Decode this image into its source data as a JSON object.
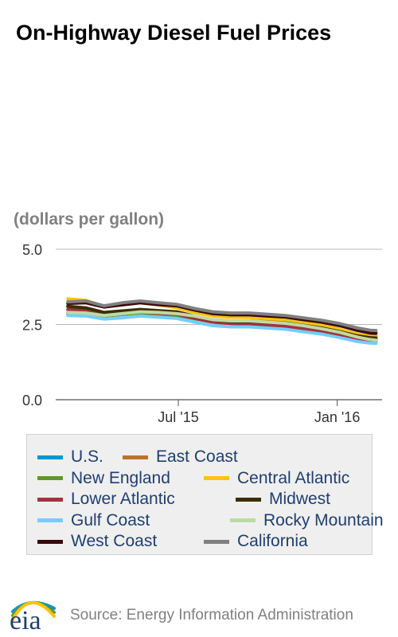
{
  "header": {
    "title": "On-Highway Diesel Fuel Prices",
    "units": "(dollars per gallon)"
  },
  "chart_data": {
    "type": "line",
    "ylim": [
      0,
      5
    ],
    "yticks": [
      "0.0",
      "2.5",
      "5.0"
    ],
    "ytick_values": [
      0,
      2.5,
      5
    ],
    "xticks": [
      {
        "label": "Jul '15",
        "date": "2015-07-01"
      },
      {
        "label": "Jan '16",
        "date": "2016-01-01"
      }
    ],
    "x_start": "2015-02-09",
    "x_end": "2016-02-22",
    "grid": "horizontal",
    "dates": [
      "2015-02-23",
      "2015-03-16",
      "2015-04-06",
      "2015-04-27",
      "2015-05-18",
      "2015-06-08",
      "2015-06-29",
      "2015-07-20",
      "2015-08-10",
      "2015-08-31",
      "2015-09-21",
      "2015-10-12",
      "2015-11-02",
      "2015-11-23",
      "2015-12-14",
      "2016-01-04",
      "2016-01-25",
      "2016-02-08",
      "2016-02-15"
    ],
    "series": [
      {
        "name": "U.S.",
        "color": "#0096d7",
        "values": [
          2.9,
          2.93,
          2.8,
          2.85,
          2.9,
          2.86,
          2.82,
          2.7,
          2.58,
          2.55,
          2.55,
          2.52,
          2.5,
          2.42,
          2.32,
          2.2,
          2.05,
          2.0,
          1.99
        ]
      },
      {
        "name": "East Coast",
        "color": "#bd732a",
        "values": [
          3.1,
          3.05,
          2.88,
          2.92,
          2.97,
          2.93,
          2.88,
          2.76,
          2.66,
          2.62,
          2.62,
          2.6,
          2.58,
          2.51,
          2.43,
          2.32,
          2.18,
          2.12,
          2.11
        ]
      },
      {
        "name": "New England",
        "color": "#5d9732",
        "values": [
          2.85,
          2.88,
          2.78,
          2.83,
          2.88,
          2.84,
          2.8,
          2.69,
          2.58,
          2.54,
          2.54,
          2.51,
          2.49,
          2.41,
          2.32,
          2.21,
          2.07,
          2.01,
          2.0
        ]
      },
      {
        "name": "Central Atlantic",
        "color": "#ffc20e",
        "values": [
          3.35,
          3.3,
          3.1,
          3.18,
          3.22,
          3.15,
          3.05,
          2.9,
          2.78,
          2.74,
          2.73,
          2.7,
          2.66,
          2.57,
          2.47,
          2.34,
          2.18,
          2.1,
          2.09
        ]
      },
      {
        "name": "Lower Atlantic",
        "color": "#a33340",
        "values": [
          3.0,
          2.95,
          2.8,
          2.86,
          2.92,
          2.88,
          2.84,
          2.7,
          2.58,
          2.53,
          2.52,
          2.48,
          2.44,
          2.36,
          2.28,
          2.16,
          2.03,
          1.98,
          1.96
        ]
      },
      {
        "name": "Midwest",
        "color": "#3b2e00",
        "values": [
          3.1,
          3.05,
          2.9,
          2.95,
          3.0,
          2.96,
          2.92,
          2.78,
          2.65,
          2.6,
          2.6,
          2.57,
          2.55,
          2.47,
          2.38,
          2.26,
          2.12,
          2.06,
          2.05
        ]
      },
      {
        "name": "Gulf Coast",
        "color": "#73ceff",
        "values": [
          2.8,
          2.78,
          2.68,
          2.72,
          2.78,
          2.74,
          2.7,
          2.58,
          2.46,
          2.42,
          2.42,
          2.38,
          2.34,
          2.26,
          2.18,
          2.06,
          1.93,
          1.88,
          1.87
        ]
      },
      {
        "name": "Rocky Mountain",
        "color": "#bcdba4",
        "values": [
          2.9,
          2.88,
          2.8,
          2.86,
          2.92,
          2.9,
          2.86,
          2.78,
          2.66,
          2.62,
          2.62,
          2.58,
          2.54,
          2.46,
          2.36,
          2.24,
          2.08,
          2.0,
          1.98
        ]
      },
      {
        "name": "West Coast",
        "color": "#3a0a0c",
        "values": [
          3.2,
          3.22,
          3.08,
          3.15,
          3.22,
          3.16,
          3.12,
          2.98,
          2.86,
          2.82,
          2.82,
          2.78,
          2.75,
          2.66,
          2.58,
          2.46,
          2.3,
          2.22,
          2.21
        ]
      },
      {
        "name": "California",
        "color": "#808080",
        "values": [
          3.25,
          3.28,
          3.12,
          3.22,
          3.28,
          3.22,
          3.17,
          3.03,
          2.92,
          2.88,
          2.88,
          2.84,
          2.8,
          2.72,
          2.64,
          2.53,
          2.38,
          2.31,
          2.3
        ]
      }
    ]
  },
  "legend_layout": [
    [
      "U.S.",
      "East Coast"
    ],
    [
      "New England",
      "Central Atlantic"
    ],
    [
      "Lower Atlantic",
      "Midwest"
    ],
    [
      "Gulf Coast",
      "Rocky Mountain"
    ],
    [
      "West Coast",
      "California"
    ]
  ],
  "footer": {
    "logo_text": "eia",
    "source": "Source: Energy Information Administration",
    "logo_colors": [
      "#0096d7",
      "#5d9732",
      "#ffc20e"
    ]
  }
}
